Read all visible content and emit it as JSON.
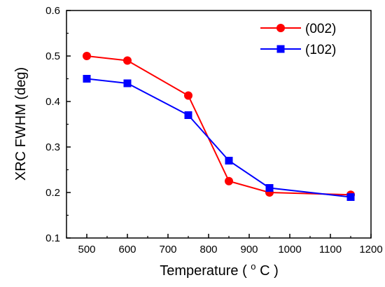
{
  "chart_data": {
    "type": "line",
    "xlabel": "Temperature",
    "xlabel_unit_sup": "o",
    "xlabel_unit": "C",
    "ylabel": "XRC FWHM (deg)",
    "xlim": [
      450,
      1200
    ],
    "ylim": [
      0.1,
      0.6
    ],
    "xticks": [
      500,
      600,
      700,
      800,
      900,
      1000,
      1100,
      1200
    ],
    "yticks": [
      0.1,
      0.2,
      0.3,
      0.4,
      0.5,
      0.6
    ],
    "ytick_labels": [
      "0.1",
      "0.2",
      "0.3",
      "0.4",
      "0.5",
      "0.6"
    ],
    "legend_position": "top-right",
    "series": [
      {
        "name": "(002)",
        "color": "#ff0000",
        "marker": "circle",
        "x": [
          500,
          600,
          750,
          850,
          950,
          1150
        ],
        "y": [
          0.5,
          0.49,
          0.413,
          0.225,
          0.2,
          0.195
        ]
      },
      {
        "name": "(102)",
        "color": "#0000ff",
        "marker": "square",
        "x": [
          500,
          600,
          750,
          850,
          950,
          1150
        ],
        "y": [
          0.45,
          0.44,
          0.37,
          0.27,
          0.21,
          0.19
        ]
      }
    ]
  }
}
